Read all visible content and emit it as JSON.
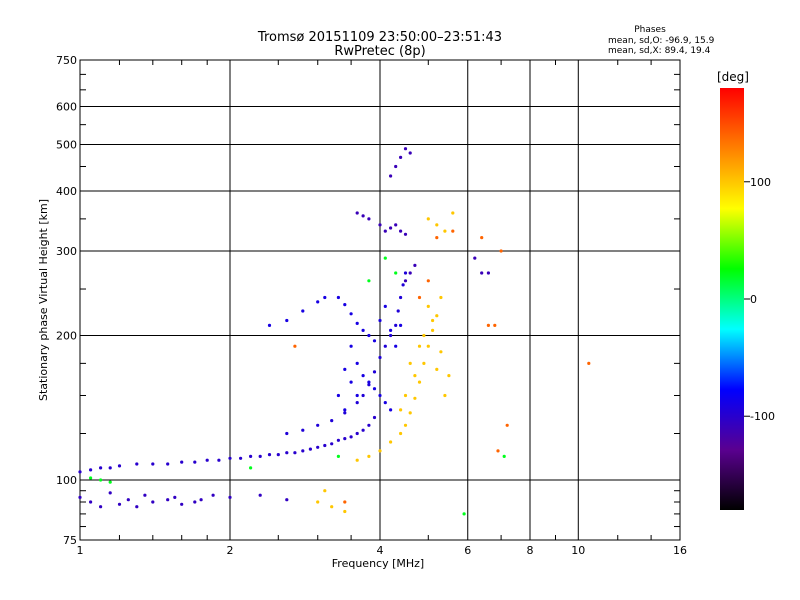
{
  "chart_data": {
    "type": "scatter",
    "title": "Tromsø 20151109 23:50:00–23:51:43",
    "subtitle": "RwPretec (8p)",
    "xlabel": "Frequency [MHz]",
    "ylabel": "Stationary phase Virtual Height [km]",
    "x_scale": "log",
    "y_scale": "log",
    "xlim": [
      1,
      16
    ],
    "ylim": [
      75,
      750
    ],
    "grid": true,
    "x_ticks": [
      "1",
      "2",
      "4",
      "6",
      "8",
      "10",
      "16"
    ],
    "y_ticks": [
      "75",
      "100",
      "200",
      "300",
      "400",
      "500",
      "600",
      "750"
    ],
    "stats": {
      "title": "Phases",
      "line_o": "mean, sd,O:  -96.9, 15.9",
      "line_x": "mean, sd,X:  89.4, 19.4"
    },
    "colorbar": {
      "label": "[deg]",
      "range": [
        -180,
        180
      ],
      "ticks": [
        "100",
        "0",
        "-100"
      ],
      "colors": [
        "#000000",
        "#5a0090",
        "#0000ff",
        "#00ffff",
        "#00ff00",
        "#ffff00",
        "#ff8000",
        "#ff0000"
      ]
    },
    "series": [
      {
        "trace": "low F-layer trace (100-130 km)",
        "phase": -100,
        "points": [
          [
            1.0,
            104
          ],
          [
            1.05,
            105
          ],
          [
            1.1,
            106
          ],
          [
            1.15,
            106
          ],
          [
            1.2,
            107
          ],
          [
            1.3,
            108
          ],
          [
            1.4,
            108
          ],
          [
            1.5,
            108
          ],
          [
            1.6,
            109
          ],
          [
            1.7,
            109
          ],
          [
            1.8,
            110
          ],
          [
            1.9,
            110
          ],
          [
            2.0,
            111
          ],
          [
            2.1,
            111
          ],
          [
            2.2,
            112
          ],
          [
            2.3,
            112
          ],
          [
            2.4,
            113
          ],
          [
            2.5,
            113
          ],
          [
            2.6,
            114
          ],
          [
            2.7,
            114
          ],
          [
            2.8,
            115
          ],
          [
            2.9,
            116
          ],
          [
            3.0,
            117
          ],
          [
            3.1,
            118
          ],
          [
            3.2,
            119
          ],
          [
            3.3,
            121
          ],
          [
            3.4,
            122
          ],
          [
            3.5,
            123
          ],
          [
            3.6,
            125
          ],
          [
            3.7,
            127
          ],
          [
            3.8,
            130
          ],
          [
            3.9,
            135
          ]
        ]
      },
      {
        "trace": "E-region echoes (~90 km)",
        "phase": -105,
        "points": [
          [
            1.0,
            92
          ],
          [
            1.05,
            90
          ],
          [
            1.1,
            88
          ],
          [
            1.15,
            94
          ],
          [
            1.2,
            89
          ],
          [
            1.25,
            91
          ],
          [
            1.3,
            88
          ],
          [
            1.35,
            93
          ],
          [
            1.4,
            90
          ],
          [
            1.5,
            91
          ],
          [
            1.55,
            92
          ],
          [
            1.6,
            89
          ],
          [
            1.7,
            90
          ],
          [
            1.75,
            91
          ],
          [
            1.85,
            93
          ],
          [
            2.0,
            92
          ],
          [
            2.3,
            93
          ],
          [
            2.6,
            91
          ]
        ]
      },
      {
        "trace": "rising F2 O-trace",
        "phase": -95,
        "points": [
          [
            2.6,
            125
          ],
          [
            2.8,
            127
          ],
          [
            3.0,
            130
          ],
          [
            3.2,
            133
          ],
          [
            3.4,
            138
          ],
          [
            3.6,
            145
          ],
          [
            3.7,
            150
          ],
          [
            3.8,
            158
          ],
          [
            3.9,
            168
          ],
          [
            4.0,
            180
          ],
          [
            4.1,
            190
          ],
          [
            4.2,
            200
          ],
          [
            4.3,
            210
          ],
          [
            4.35,
            225
          ],
          [
            4.4,
            240
          ],
          [
            4.45,
            255
          ],
          [
            4.5,
            270
          ]
        ]
      },
      {
        "trace": "scattered spread-F echoes",
        "phase": -90,
        "points": [
          [
            3.3,
            240
          ],
          [
            3.4,
            232
          ],
          [
            3.5,
            222
          ],
          [
            3.6,
            212
          ],
          [
            3.7,
            205
          ],
          [
            3.8,
            200
          ],
          [
            3.9,
            195
          ],
          [
            4.0,
            215
          ],
          [
            4.1,
            230
          ],
          [
            4.2,
            205
          ],
          [
            4.3,
            190
          ],
          [
            4.4,
            210
          ],
          [
            3.5,
            190
          ],
          [
            3.6,
            175
          ],
          [
            3.7,
            165
          ],
          [
            3.8,
            160
          ],
          [
            3.9,
            155
          ],
          [
            4.0,
            150
          ],
          [
            4.1,
            145
          ],
          [
            4.2,
            140
          ],
          [
            3.4,
            170
          ],
          [
            3.5,
            160
          ],
          [
            3.6,
            150
          ],
          [
            3.3,
            150
          ],
          [
            3.4,
            140
          ],
          [
            2.4,
            210
          ],
          [
            2.6,
            215
          ],
          [
            2.8,
            225
          ],
          [
            3.0,
            235
          ],
          [
            3.1,
            240
          ]
        ]
      },
      {
        "trace": "upper echoes (300-500 km)",
        "phase": -110,
        "points": [
          [
            3.6,
            360
          ],
          [
            3.7,
            355
          ],
          [
            3.8,
            350
          ],
          [
            4.0,
            340
          ],
          [
            4.1,
            330
          ],
          [
            4.2,
            335
          ],
          [
            4.3,
            340
          ],
          [
            4.4,
            330
          ],
          [
            4.5,
            325
          ],
          [
            4.3,
            450
          ],
          [
            4.4,
            470
          ],
          [
            4.5,
            490
          ],
          [
            4.6,
            480
          ],
          [
            4.2,
            430
          ],
          [
            4.5,
            260
          ],
          [
            4.6,
            270
          ],
          [
            4.7,
            280
          ],
          [
            6.4,
            270
          ],
          [
            6.6,
            270
          ],
          [
            6.2,
            290
          ]
        ]
      },
      {
        "trace": "yellow X-trace",
        "phase": 100,
        "points": [
          [
            3.6,
            110
          ],
          [
            3.8,
            112
          ],
          [
            4.0,
            115
          ],
          [
            4.2,
            120
          ],
          [
            4.4,
            125
          ],
          [
            4.5,
            130
          ],
          [
            4.6,
            138
          ],
          [
            4.7,
            148
          ],
          [
            4.8,
            160
          ],
          [
            4.9,
            175
          ],
          [
            5.0,
            190
          ],
          [
            5.1,
            205
          ],
          [
            5.2,
            220
          ],
          [
            5.3,
            240
          ],
          [
            4.5,
            150
          ],
          [
            4.7,
            165
          ],
          [
            4.9,
            200
          ],
          [
            5.1,
            215
          ],
          [
            5.3,
            185
          ],
          [
            5.5,
            165
          ],
          [
            4.4,
            140
          ],
          [
            4.6,
            175
          ],
          [
            4.8,
            190
          ],
          [
            5.0,
            230
          ],
          [
            5.2,
            170
          ],
          [
            5.4,
            150
          ],
          [
            5.4,
            330
          ],
          [
            5.2,
            340
          ],
          [
            5.0,
            350
          ],
          [
            5.6,
            360
          ],
          [
            3.0,
            90
          ],
          [
            3.2,
            88
          ],
          [
            3.4,
            86
          ],
          [
            3.1,
            95
          ]
        ]
      },
      {
        "trace": "orange echoes",
        "phase": 140,
        "points": [
          [
            5.2,
            320
          ],
          [
            5.6,
            330
          ],
          [
            6.4,
            320
          ],
          [
            6.6,
            210
          ],
          [
            6.8,
            210
          ],
          [
            7.0,
            300
          ],
          [
            7.2,
            130
          ],
          [
            6.9,
            115
          ],
          [
            4.8,
            240
          ],
          [
            5.0,
            260
          ],
          [
            10.5,
            175
          ],
          [
            3.4,
            90
          ],
          [
            2.7,
            190
          ]
        ]
      },
      {
        "trace": "cyan/green echoes",
        "phase": 20,
        "points": [
          [
            1.1,
            100
          ],
          [
            1.15,
            99
          ],
          [
            1.05,
            101
          ],
          [
            3.8,
            260
          ],
          [
            4.1,
            290
          ],
          [
            4.3,
            270
          ],
          [
            7.1,
            112
          ],
          [
            5.9,
            85
          ],
          [
            2.2,
            106
          ],
          [
            3.3,
            112
          ]
        ]
      }
    ]
  }
}
